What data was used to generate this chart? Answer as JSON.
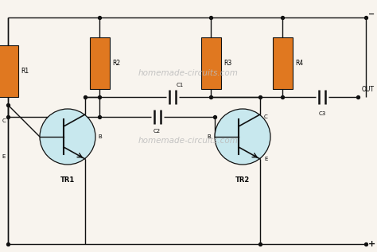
{
  "bg_color": "#f8f4ee",
  "line_color": "#111111",
  "resistor_color": "#e07820",
  "transistor_fill": "#c8e8ee",
  "watermark": "homemade-circuits.com",
  "watermark_color": "#bbbbbb",
  "xlim": [
    0,
    47.4
  ],
  "ylim": [
    0,
    31.7
  ]
}
